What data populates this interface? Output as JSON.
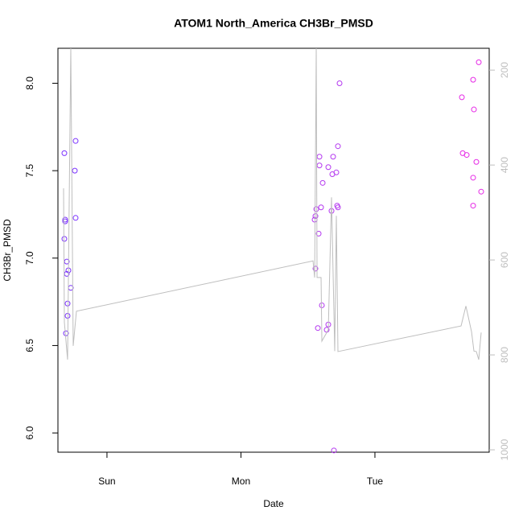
{
  "chart_data": {
    "type": "scatter",
    "title": "ATOM1 North_America CH3Br_PMSD",
    "x_label": "Date",
    "y_label": "CH3Br_PMSD",
    "xlim": [
      -0.366,
      2.853
    ],
    "xticks": [
      {
        "value": 0,
        "label": "Sun"
      },
      {
        "value": 1,
        "label": "Mon"
      },
      {
        "value": 2,
        "label": "Tue"
      }
    ],
    "ylim": [
      5.89,
      8.2
    ],
    "yticks": [
      {
        "value": 6,
        "label": "6.0"
      },
      6.5,
      {
        "value": 7,
        "label": "7.0"
      },
      7.5,
      {
        "value": 8,
        "label": "8.0"
      }
    ],
    "y2lim": [
      1005,
      154
    ],
    "y2ticks": [
      200,
      400,
      600,
      800,
      1000
    ],
    "y2_color": "#bebebe",
    "series": [
      {
        "color": "#7a30ff",
        "x": [
          -0.318,
          -0.318,
          -0.312,
          -0.312,
          -0.306,
          -0.3,
          -0.3,
          -0.294,
          -0.294,
          -0.288,
          -0.27,
          -0.24,
          -0.234,
          -0.234
        ],
        "values": [
          7.6,
          7.11,
          7.22,
          7.21,
          6.57,
          6.98,
          6.91,
          6.67,
          6.74,
          6.93,
          6.83,
          7.5,
          7.67,
          7.23
        ]
      },
      {
        "color": "#b438f0",
        "x": [
          1.556,
          1.55,
          1.556,
          1.562,
          1.574,
          1.58,
          1.586,
          1.586,
          1.598,
          1.604,
          1.61,
          1.64,
          1.652,
          1.652,
          1.676,
          1.682,
          1.688,
          1.694,
          1.712,
          1.718,
          1.724,
          1.724,
          1.736
        ],
        "values": [
          6.94,
          7.22,
          7.24,
          7.28,
          6.6,
          7.14,
          7.58,
          7.53,
          7.29,
          6.73,
          7.43,
          6.59,
          6.62,
          7.52,
          7.27,
          7.48,
          7.58,
          5.9,
          7.49,
          7.3,
          7.64,
          7.29,
          8.0
        ]
      },
      {
        "color": "#e628e6",
        "x": [
          2.649,
          2.655,
          2.685,
          2.733,
          2.739,
          2.733,
          2.733,
          2.757,
          2.775,
          2.793
        ],
        "values": [
          7.92,
          7.6,
          7.59,
          8.02,
          7.85,
          7.46,
          7.3,
          7.55,
          8.12,
          7.38
        ]
      },
      {
        "type": "line",
        "axis": "y2",
        "color": "#bebebe",
        "x": [
          -0.324,
          -0.318,
          -0.294,
          -0.27,
          -0.252,
          -0.228,
          1.538,
          1.55,
          1.562,
          1.568,
          1.598,
          1.604,
          1.652,
          1.676,
          1.7,
          1.712,
          1.724,
          2.643,
          2.679,
          2.721,
          2.739,
          2.757,
          2.775,
          2.793
        ],
        "values": [
          449,
          731,
          810,
          154,
          781,
          708,
          602,
          637,
          154,
          637,
          637,
          771,
          747,
          468,
          792,
          507,
          793,
          739,
          697,
          751,
          792,
          793,
          810,
          753
        ]
      }
    ]
  }
}
